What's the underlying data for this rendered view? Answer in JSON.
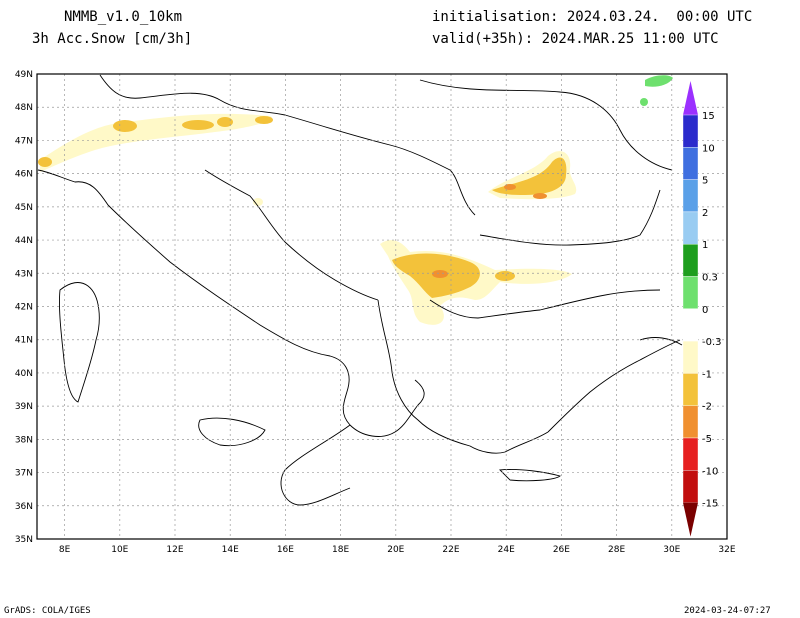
{
  "header": {
    "model": "NMMB_v1.0_10km",
    "variable": "3h Acc.Snow [cm/3h]",
    "init": "initialisation: 2024.03.24.  00:00 UTC",
    "valid": "valid(+35h): 2024.MAR.25 11:00 UTC"
  },
  "footer": {
    "credit": "GrADS: COLA/IGES",
    "timestamp": "2024-03-24-07:27"
  },
  "axes": {
    "lon_labels": [
      "8E",
      "10E",
      "12E",
      "14E",
      "16E",
      "18E",
      "20E",
      "22E",
      "24E",
      "26E",
      "28E",
      "30E",
      "32E"
    ],
    "lat_labels": [
      "49N",
      "48N",
      "47N",
      "46N",
      "45N",
      "44N",
      "43N",
      "42N",
      "41N",
      "40N",
      "39N",
      "38N",
      "37N",
      "36N",
      "35N"
    ],
    "lon_range": [
      7,
      32
    ],
    "lat_range": [
      35,
      49
    ]
  },
  "colorbar": {
    "labels": [
      "15",
      "10",
      "5",
      "2",
      "1",
      "0.3",
      "0",
      "-0.3",
      "-1",
      "-2",
      "-5",
      "-10",
      "-15"
    ],
    "colors": [
      "#2b2bcc",
      "#3f6fe0",
      "#5aa0e8",
      "#99ccf2",
      "#1e9e1e",
      "#6ee06e",
      "#ffffff",
      "#fff9c8",
      "#f3c23a",
      "#f09030",
      "#e62020",
      "#c20e0e",
      "#7a0000"
    ],
    "top_arrow_color": "#9b30ff",
    "bottom_arrow_color": "#7a0000"
  },
  "colors": {
    "grid": "#9a9a9a",
    "coast": "#000000"
  }
}
